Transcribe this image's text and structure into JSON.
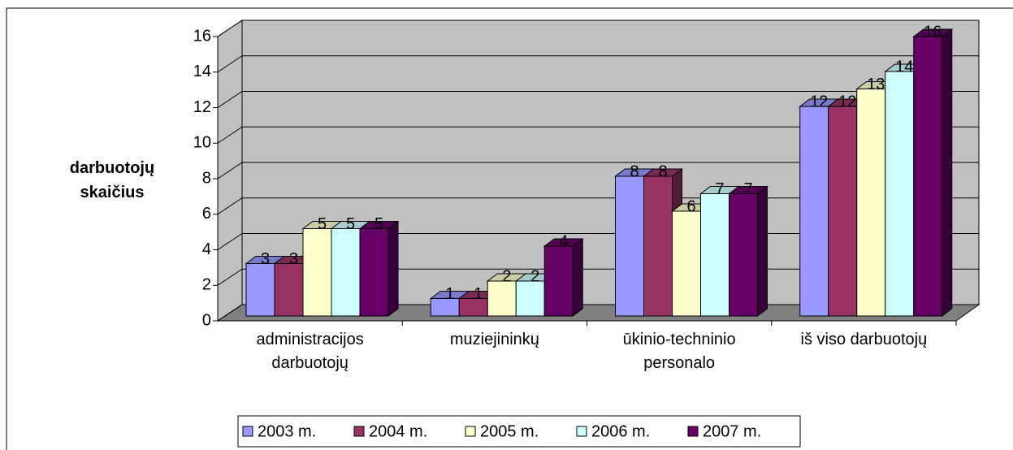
{
  "chart_data": {
    "type": "bar3d",
    "y_label": "darbuotojų\nskaičius",
    "categories": [
      "administracijos\ndarbuotojų",
      "muziejininkų",
      "ūkinio-techninio\npersonalo",
      "iš viso darbuotojų"
    ],
    "series": [
      {
        "name": "2003 m.",
        "color": "#9999ff",
        "values": [
          3,
          1,
          8,
          12
        ]
      },
      {
        "name": "2004 m.",
        "color": "#993366",
        "values": [
          3,
          1,
          8,
          12
        ]
      },
      {
        "name": "2005 m.",
        "color": "#ffffcc",
        "values": [
          5,
          2,
          6,
          13
        ]
      },
      {
        "name": "2006 m.",
        "color": "#ccffff",
        "values": [
          5,
          2,
          7,
          14
        ]
      },
      {
        "name": "2007 m.",
        "color": "#660066",
        "values": [
          5,
          4,
          7,
          16
        ]
      }
    ],
    "ylim": [
      0,
      16
    ],
    "yticks": [
      0,
      2,
      4,
      6,
      8,
      10,
      12,
      14,
      16
    ],
    "grid": true,
    "legend": "bottom"
  }
}
